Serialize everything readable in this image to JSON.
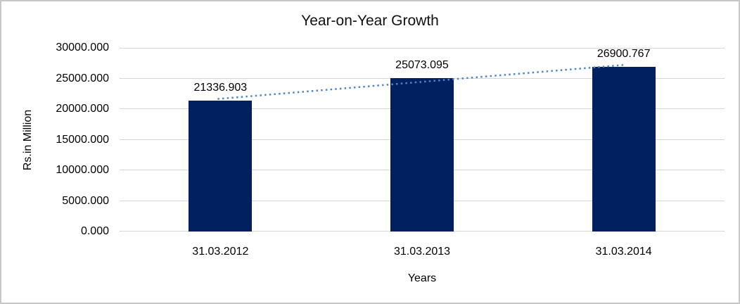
{
  "chart": {
    "title": "Year-on-Year Growth"
  },
  "chart_data": {
    "type": "bar",
    "title": "Year-on-Year Growth",
    "xlabel": "Years",
    "ylabel": "Rs.in Million",
    "categories": [
      "31.03.2012",
      "31.03.2013",
      "31.03.2014"
    ],
    "values": [
      21336.903,
      25073.095,
      26900.767
    ],
    "data_labels": [
      "21336.903",
      "25073.095",
      "26900.767"
    ],
    "y_ticks": [
      "0.000",
      "5000.000",
      "10000.000",
      "15000.000",
      "20000.000",
      "25000.000",
      "30000.000"
    ],
    "ylim": [
      0,
      30000
    ],
    "grid": true,
    "legend": "none",
    "trendline": {
      "type": "linear",
      "style": "dotted"
    },
    "colors": {
      "bar": "#002060",
      "trendline": "#4f86c8",
      "gridline": "#d6d6d6",
      "frame_border": "#c8c8c8",
      "text": "#000000",
      "background": "#ffffff"
    }
  }
}
